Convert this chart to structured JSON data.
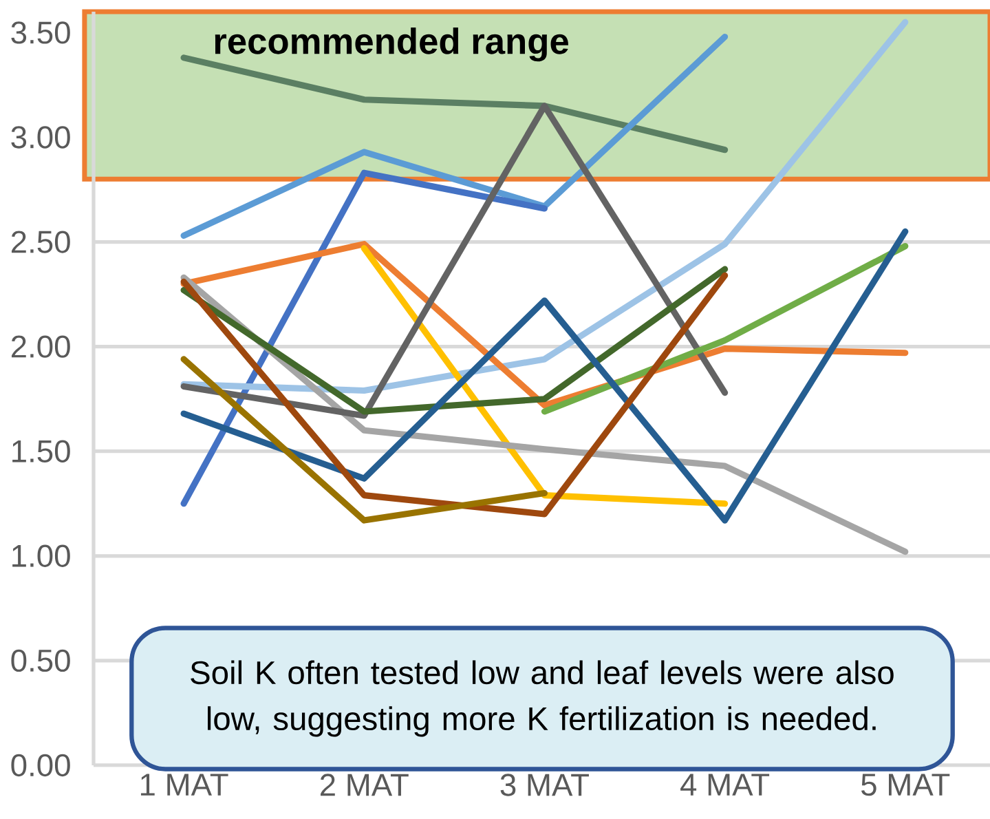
{
  "chart_data": {
    "type": "line",
    "categories": [
      "1 MAT",
      "2 MAT",
      "3 MAT",
      "4 MAT",
      "5 MAT"
    ],
    "series": [
      {
        "color": "#5b7f63",
        "values": [
          3.38,
          3.18,
          3.15,
          2.94,
          null
        ]
      },
      {
        "color": "#5b9bd5",
        "values": [
          2.53,
          2.93,
          2.67,
          3.48,
          null
        ]
      },
      {
        "color": "#4472c4",
        "values": [
          1.25,
          2.83,
          2.66,
          null,
          null
        ]
      },
      {
        "color": "#9dc3e6",
        "values": [
          1.82,
          1.79,
          1.94,
          2.49,
          3.55
        ]
      },
      {
        "color": "#ed7d31",
        "values": [
          2.3,
          2.49,
          1.72,
          1.99,
          1.97
        ]
      },
      {
        "color": "#ffc000",
        "values": [
          null,
          2.47,
          1.29,
          1.25,
          null
        ]
      },
      {
        "color": "#a5a5a5",
        "values": [
          2.33,
          1.6,
          1.51,
          1.43,
          1.02
        ]
      },
      {
        "color": "#636363",
        "values": [
          1.81,
          1.67,
          3.15,
          1.78,
          null
        ]
      },
      {
        "color": "#70ad47",
        "values": [
          null,
          null,
          1.69,
          2.03,
          2.48
        ]
      },
      {
        "color": "#43682b",
        "values": [
          2.27,
          1.69,
          1.75,
          2.37,
          null
        ]
      },
      {
        "color": "#255e91",
        "values": [
          1.68,
          1.37,
          2.22,
          1.17,
          2.55
        ]
      },
      {
        "color": "#9e480e",
        "values": [
          2.31,
          1.29,
          1.2,
          2.34,
          null
        ]
      },
      {
        "color": "#997300",
        "values": [
          1.94,
          1.17,
          1.3,
          null,
          null
        ]
      }
    ],
    "ylim": [
      0,
      3.6
    ],
    "yticks": [
      {
        "value": 0,
        "label": "0.00"
      },
      {
        "value": 0.5,
        "label": "0.50"
      },
      {
        "value": 1,
        "label": "1.00"
      },
      {
        "value": 1.5,
        "label": "1.50"
      },
      {
        "value": 2,
        "label": "2.00"
      },
      {
        "value": 2.5,
        "label": "2.50"
      },
      {
        "value": 3,
        "label": "3.00"
      },
      {
        "value": 3.5,
        "label": "3.50"
      }
    ],
    "grid": "y",
    "bands": [
      {
        "axis": "y",
        "from": 2.8,
        "to": 3.6,
        "label": "recommended range",
        "color": "#c5e0b4"
      }
    ],
    "annotations": [
      "Soil K often tested low and leaf levels were also low, suggesting more K fertilization is needed."
    ]
  }
}
